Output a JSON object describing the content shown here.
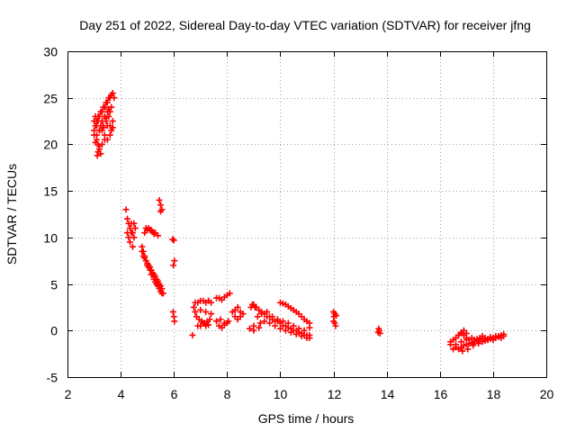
{
  "chart_data": {
    "type": "scatter",
    "title": "Day 251 of 2022, Sidereal Day-to-day VTEC variation (SDTVAR) for receiver jfng",
    "xlabel": "GPS time / hours",
    "ylabel": "SDTVAR / TECUs",
    "xlim": [
      2,
      20
    ],
    "ylim": [
      -5,
      30
    ],
    "xticks": [
      2,
      4,
      6,
      8,
      10,
      12,
      14,
      16,
      18,
      20
    ],
    "yticks": [
      -5,
      0,
      5,
      10,
      15,
      20,
      25,
      30
    ],
    "grid": true,
    "marker": "plus",
    "color": "#ff0000",
    "series": [
      {
        "name": "SDTVAR",
        "x": [
          3.0,
          3.05,
          3.1,
          3.15,
          3.2,
          3.25,
          3.3,
          3.35,
          3.4,
          3.45,
          3.5,
          3.55,
          3.6,
          3.65,
          3.7,
          3.75,
          3.0,
          3.05,
          3.1,
          3.15,
          3.2,
          3.25,
          3.3,
          3.35,
          3.4,
          3.45,
          3.5,
          3.55,
          3.6,
          3.65,
          3.0,
          3.1,
          3.2,
          3.3,
          3.4,
          3.5,
          3.6,
          3.7,
          3.1,
          3.15,
          3.2,
          3.25,
          3.3,
          3.4,
          3.5,
          3.6,
          3.65,
          3.7,
          3.12,
          3.15,
          3.2,
          3.05,
          3.35,
          3.45,
          3.55,
          4.2,
          4.25,
          4.3,
          4.35,
          4.4,
          4.45,
          4.5,
          4.3,
          4.4,
          4.5,
          4.35,
          4.45,
          4.25,
          4.55,
          4.8,
          4.85,
          4.9,
          4.95,
          5.0,
          5.05,
          5.1,
          5.15,
          5.2,
          5.25,
          5.3,
          5.35,
          5.4,
          5.45,
          5.5,
          5.55,
          5.6,
          4.85,
          4.95,
          5.05,
          5.15,
          5.25,
          5.35,
          5.45,
          5.55,
          4.8,
          4.9,
          5.0,
          5.1,
          5.2,
          5.3,
          5.4,
          5.5,
          4.9,
          5.0,
          5.1,
          5.2,
          5.3,
          5.4,
          4.95,
          5.05,
          5.15,
          5.25,
          5.45,
          5.5,
          5.55,
          5.5,
          5.95,
          6.0,
          6.02,
          5.98,
          5.97,
          6.0,
          6.02,
          6.7,
          6.75,
          6.8,
          6.9,
          7.0,
          7.1,
          7.2,
          7.3,
          7.4,
          6.85,
          6.95,
          7.05,
          7.15,
          7.25,
          7.35,
          6.9,
          7.0,
          7.1,
          7.2,
          7.3,
          6.8,
          7.0,
          7.2,
          7.4,
          7.6,
          7.7,
          7.8,
          7.9,
          8.0,
          8.1,
          7.7,
          7.8,
          7.9,
          8.0,
          7.6,
          7.75,
          7.9,
          8.05,
          8.2,
          8.3,
          8.4,
          8.5,
          8.6,
          8.3,
          8.4,
          8.5,
          8.9,
          9.0,
          9.1,
          9.2,
          9.3,
          9.4,
          9.5,
          9.6,
          9.7,
          9.8,
          9.9,
          10.0,
          10.1,
          10.2,
          10.3,
          10.4,
          10.5,
          10.6,
          10.7,
          10.8,
          10.9,
          11.0,
          11.1,
          9.0,
          9.2,
          9.4,
          9.6,
          9.8,
          10.0,
          10.2,
          10.4,
          10.6,
          10.8,
          11.0,
          11.1,
          9.3,
          9.5,
          9.7,
          9.9,
          10.1,
          10.3,
          10.5,
          10.7,
          10.9,
          11.1,
          10.0,
          10.1,
          10.2,
          10.3,
          10.4,
          10.5,
          10.6,
          10.7,
          10.8,
          10.9,
          11.0,
          11.1,
          8.95,
          9.05,
          9.15,
          9.25,
          8.85,
          9.0,
          12.0,
          12.05,
          12.1,
          12.0,
          12.05,
          12.08,
          12.02,
          13.7,
          13.72,
          13.68,
          13.75,
          16.4,
          16.5,
          16.6,
          16.7,
          16.8,
          16.9,
          17.0,
          17.1,
          17.2,
          17.3,
          17.4,
          17.5,
          17.6,
          17.7,
          17.8,
          17.9,
          18.0,
          18.1,
          18.2,
          18.3,
          18.4,
          16.5,
          16.6,
          16.7,
          16.8,
          16.9,
          17.0,
          17.1,
          17.2,
          17.3,
          17.4,
          17.5,
          17.6,
          17.7,
          17.8,
          17.9,
          18.0,
          18.1,
          18.2,
          18.3,
          16.4,
          16.6,
          16.8,
          17.0,
          17.2,
          17.4,
          17.6,
          17.8,
          18.0,
          18.2,
          18.4,
          16.7,
          16.8,
          16.9,
          17.0,
          16.85,
          17.05,
          17.25,
          17.45
        ],
        "y": [
          21.5,
          22.0,
          22.5,
          23.0,
          23.0,
          23.5,
          23.5,
          24.0,
          24.0,
          24.5,
          24.5,
          25.0,
          25.0,
          25.3,
          25.5,
          25.0,
          22.5,
          23.0,
          22.0,
          22.5,
          21.5,
          22.0,
          22.5,
          22.0,
          23.0,
          22.5,
          23.5,
          23.0,
          23.5,
          24.0,
          21.0,
          21.0,
          21.5,
          21.5,
          21.0,
          22.0,
          22.0,
          22.5,
          20.5,
          20.0,
          19.5,
          19.0,
          20.0,
          20.5,
          20.5,
          21.0,
          21.5,
          21.8,
          18.8,
          19.2,
          19.8,
          20.2,
          21.8,
          22.8,
          23.8,
          13.0,
          12.0,
          11.5,
          11.0,
          11.5,
          10.5,
          10.0,
          10.0,
          10.5,
          11.5,
          9.5,
          9.0,
          10.5,
          11.0,
          9.0,
          8.5,
          8.0,
          7.5,
          7.0,
          6.8,
          6.5,
          6.0,
          6.0,
          5.5,
          5.2,
          5.0,
          4.8,
          4.5,
          4.2,
          4.0,
          4.0,
          8.0,
          7.5,
          7.0,
          6.5,
          6.0,
          5.5,
          5.0,
          4.5,
          8.5,
          7.8,
          7.2,
          6.8,
          6.2,
          5.8,
          5.3,
          4.8,
          10.5,
          10.8,
          10.8,
          10.6,
          10.5,
          10.2,
          11.0,
          11.0,
          10.8,
          10.4,
          14.0,
          13.5,
          13.0,
          12.8,
          9.8,
          9.7,
          7.5,
          7.0,
          2.0,
          1.5,
          1.0,
          -0.5,
          2.5,
          3.0,
          3.0,
          3.2,
          3.2,
          3.0,
          3.2,
          3.0,
          1.5,
          1.2,
          1.0,
          0.8,
          1.0,
          1.2,
          0.5,
          0.5,
          0.8,
          0.5,
          0.6,
          2.0,
          2.2,
          2.0,
          1.8,
          3.5,
          3.5,
          3.3,
          3.6,
          3.8,
          4.0,
          0.5,
          0.3,
          0.6,
          0.8,
          1.0,
          1.2,
          0.8,
          1.0,
          2.0,
          2.2,
          2.5,
          2.0,
          1.8,
          1.5,
          1.2,
          1.5,
          2.5,
          2.8,
          2.5,
          2.2,
          2.0,
          1.8,
          1.5,
          1.5,
          1.2,
          1.0,
          1.0,
          0.8,
          0.5,
          0.5,
          0.3,
          0.2,
          0.0,
          0.0,
          -0.2,
          -0.3,
          -0.5,
          -0.5,
          -0.8,
          0.5,
          0.3,
          1.0,
          0.8,
          0.5,
          0.2,
          0.0,
          -0.2,
          -0.4,
          -0.6,
          -0.8,
          -0.5,
          1.8,
          2.0,
          1.5,
          1.2,
          1.0,
          0.8,
          0.5,
          0.2,
          0.0,
          0.3,
          3.0,
          2.9,
          2.8,
          2.6,
          2.4,
          2.2,
          2.0,
          1.8,
          1.5,
          1.2,
          1.0,
          0.8,
          2.8,
          2.5,
          1.5,
          0.8,
          0.2,
          0.0,
          2.0,
          1.8,
          1.6,
          1.0,
          0.8,
          0.5,
          1.5,
          0.2,
          0.0,
          -0.2,
          -0.3,
          -1.5,
          -1.0,
          -0.8,
          -0.5,
          -0.3,
          -0.5,
          -0.8,
          -1.0,
          -0.8,
          -1.0,
          -0.9,
          -0.8,
          -0.6,
          -0.8,
          -0.9,
          -0.7,
          -0.8,
          -0.6,
          -0.7,
          -0.5,
          -0.6,
          -2.0,
          -1.8,
          -2.0,
          -1.8,
          -1.6,
          -1.5,
          -1.4,
          -1.3,
          -1.2,
          -1.1,
          -1.0,
          -1.2,
          -1.1,
          -1.0,
          -0.9,
          -1.0,
          -0.8,
          -0.7,
          -0.8,
          -1.2,
          -1.5,
          -1.2,
          -1.0,
          -1.3,
          -1.1,
          -0.9,
          -1.0,
          -0.8,
          -0.6,
          -0.4,
          -0.5,
          -0.2,
          0.0,
          -0.3,
          -2.2,
          -2.0,
          -1.6,
          -1.4
        ]
      }
    ]
  }
}
